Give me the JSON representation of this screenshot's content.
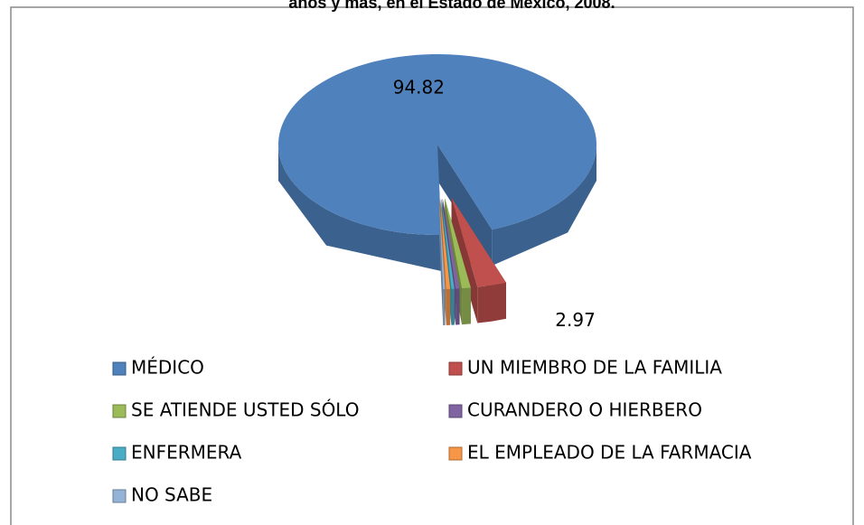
{
  "chart_data": {
    "type": "pie3d",
    "title": "años y más, en el Estado de México, 2008.",
    "categories": [
      "MÉDICO",
      "UN MIEMBRO DE LA FAMILIA",
      "SE ATIENDE USTED SÓLO",
      "CURANDERO O HIERBERO",
      "ENFERMERA",
      "EL EMPLEADO DE LA FARMACIA",
      "NO SABE"
    ],
    "values": [
      94.82,
      2.97,
      0.9,
      0.4,
      0.3,
      0.4,
      0.21
    ],
    "value_labels": [
      "94.82",
      "2.97",
      null,
      null,
      null,
      null,
      null
    ],
    "colors": [
      "#4f81bd",
      "#c0504d",
      "#9bbb59",
      "#8064a2",
      "#4bacc6",
      "#f79646",
      "#95b3d7"
    ]
  }
}
